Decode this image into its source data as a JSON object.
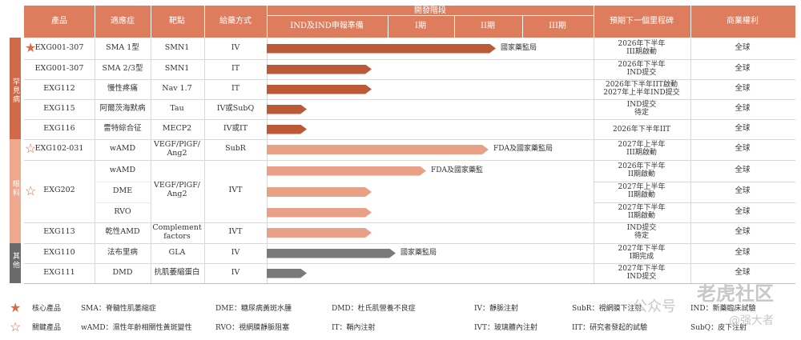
{
  "colors": {
    "header": "#de7d5e",
    "header_pale": "#f2c3b0",
    "rare": "#bc5a38",
    "eye": "#e8a087",
    "other": "#7a7a7a",
    "cat_rare": "#d06a48",
    "cat_eye": "#eda88e",
    "cat_other": "#6a6a6a",
    "star": "#d86b45"
  },
  "header": {
    "product": "產品",
    "indication": "適應症",
    "target": "靶點",
    "route": "給藥方式",
    "dev_stage": "開發階段",
    "stage_ind": "IND及IND申報準備",
    "stage_1": "I期",
    "stage_2": "II期",
    "stage_3": "III期",
    "milestone": "預期下一個里程碑",
    "rights": "商業權利"
  },
  "categories": [
    "罕見病",
    "眼科",
    "其他"
  ],
  "chart_data": {
    "type": "table",
    "stages": [
      "IND及IND申報準備",
      "I期",
      "II期",
      "III期"
    ],
    "rows": [
      {
        "product": "EXG001-307",
        "indication": "SMA 1型",
        "target": "SMN1",
        "route": "IV",
        "progress": 0.98,
        "note": "國家藥監局",
        "milestone": [
          "2026年下半年",
          "III期啟動"
        ],
        "rights": "全球",
        "category": "罕見病",
        "star": "core"
      },
      {
        "product": "EXG001-307",
        "indication": "SMA 2/3型",
        "target": "SMN1",
        "route": "IT",
        "progress": 0.45,
        "note": "",
        "milestone": [
          "2026年下半年",
          "IND提交"
        ],
        "rights": "全球",
        "category": "罕見病",
        "star": ""
      },
      {
        "product": "EXG112",
        "indication": "慢性疼痛",
        "target": "Nav 1.7",
        "route": "IT",
        "progress": 0.45,
        "note": "",
        "milestone": [
          "2026年下半年IIT啟動",
          "2027年上半年IND提交"
        ],
        "rights": "全球",
        "category": "罕見病",
        "star": ""
      },
      {
        "product": "EXG115",
        "indication": "阿爾茨海默病",
        "target": "Tau",
        "route": "IV或SubQ",
        "progress": 0.17,
        "note": "",
        "milestone": [
          "IND提交",
          "待定"
        ],
        "rights": "全球",
        "category": "罕見病",
        "star": ""
      },
      {
        "product": "EXG116",
        "indication": "雷特綜合征",
        "target": "MECP2",
        "route": "IV或IT",
        "progress": 0.17,
        "note": "",
        "milestone": [
          "2026年下半年IIT"
        ],
        "rights": "全球",
        "category": "罕見病",
        "star": ""
      },
      {
        "product": "EXG102-031",
        "indication": "wAMD",
        "target": "VEGF/PlGF/ Ang2",
        "route": "SubR",
        "progress": 0.95,
        "note": "FDA及國家藥監局",
        "milestone": [
          "2027年上半年",
          "III期啟動"
        ],
        "rights": "全球",
        "category": "眼科",
        "star": "key"
      },
      {
        "product": "EXG202",
        "indication": "wAMD",
        "target": "VEGF/PlGF/ Ang2",
        "route": "IVT",
        "progress": 0.68,
        "note": "FDA及國家藥監",
        "milestone": [
          "2026年下半年",
          "II期啟動"
        ],
        "rights": "全球",
        "category": "眼科",
        "star": "key"
      },
      {
        "product": "",
        "indication": "DME",
        "target": "",
        "route": "",
        "progress": 0.45,
        "note": "",
        "milestone": [
          "2027年上半年",
          "II期啟動"
        ],
        "rights": "全球",
        "category": "眼科",
        "star": ""
      },
      {
        "product": "",
        "indication": "RVO",
        "target": "",
        "route": "",
        "progress": 0.45,
        "note": "",
        "milestone": [
          "2027年下半年",
          "II期啟動"
        ],
        "rights": "全球",
        "category": "眼科",
        "star": ""
      },
      {
        "product": "EXG113",
        "indication": "乾性AMD",
        "target": "Complement factors",
        "route": "IVT",
        "progress": 0.45,
        "note": "",
        "milestone": [
          "IND提交",
          "待定"
        ],
        "rights": "全球",
        "category": "眼科",
        "star": ""
      },
      {
        "product": "EXG110",
        "indication": "法布里病",
        "target": "GLA",
        "route": "IV",
        "progress": 0.55,
        "note": "國家藥監局",
        "milestone": [
          "2027年下半年",
          "I期完成"
        ],
        "rights": "全球",
        "category": "其他",
        "star": ""
      },
      {
        "product": "EXG111",
        "indication": "DMD",
        "target": "抗肌萎縮蛋白",
        "route": "IV",
        "progress": 0.17,
        "note": "",
        "milestone": [
          "2027年下半年",
          "IND提交"
        ],
        "rights": "全球",
        "category": "其他",
        "star": ""
      }
    ]
  },
  "legend": {
    "core": "核心產品",
    "key": "關鍵產品",
    "items": [
      "SMA：脊髓性肌萎縮症",
      "DME：糖尿病黃斑水腫",
      "DMD：杜氏肌營養不良症",
      "IV：靜脈注射",
      "SubR：視網膜下注射",
      "IND：新藥臨床試驗",
      "wAMD：濕性年齡相關性黃斑變性",
      "RVO：視網膜靜脈阻塞",
      "IT：鞘內注射",
      "IVT：玻璃體內注射",
      "IIT：研究者發起的試驗",
      "SubQ：皮下注射"
    ]
  },
  "watermark": {
    "name": "老虎社区",
    "sub": "@强大者",
    "wechat": "公众号"
  }
}
